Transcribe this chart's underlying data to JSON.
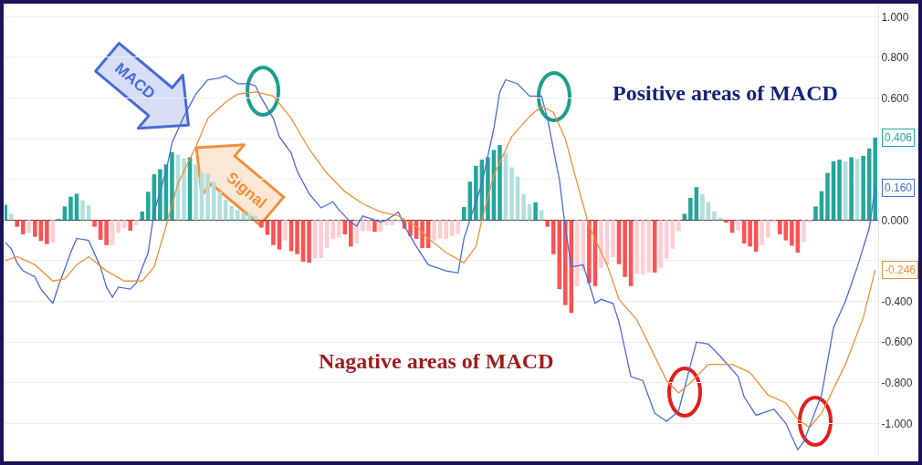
{
  "chart_data": {
    "type": "bar",
    "categories": [
      null,
      null,
      null,
      null,
      null,
      null,
      null,
      null,
      null,
      null,
      null,
      null,
      null,
      null,
      null,
      null,
      null,
      null,
      null,
      null,
      null,
      null,
      null,
      null,
      null,
      null,
      null,
      null,
      null,
      null,
      null,
      null,
      null,
      null,
      null,
      null,
      null,
      null,
      null,
      null,
      null,
      null,
      null,
      null,
      null,
      null,
      null,
      null,
      null,
      null,
      null,
      null,
      null,
      null,
      null,
      null,
      null,
      null,
      null,
      null,
      null,
      null,
      null,
      null,
      null,
      null,
      null,
      null,
      null,
      null,
      null,
      null,
      null,
      null,
      null,
      null,
      null,
      null,
      null,
      null,
      null,
      null,
      null,
      null,
      null,
      null,
      null,
      null,
      null,
      null,
      null,
      null,
      null,
      null,
      null,
      null,
      null,
      null,
      null,
      null,
      null,
      null,
      null,
      null,
      null,
      null,
      null,
      null,
      null,
      null,
      null,
      null,
      null,
      null,
      null,
      null,
      null,
      null,
      null,
      null,
      null,
      null,
      null,
      null,
      null,
      null,
      null,
      null,
      null,
      null,
      null,
      null,
      null,
      null,
      null,
      null,
      null,
      null,
      null,
      null,
      null,
      null,
      null,
      null,
      null,
      null,
      null
    ],
    "series": [
      {
        "values": [
          0.075,
          0.031,
          -0.033,
          -0.07,
          -0.063,
          -0.082,
          -0.103,
          -0.118,
          -0.112,
          0.005,
          0.067,
          0.115,
          0.129,
          0.097,
          0.072,
          -0.033,
          -0.097,
          -0.123,
          -0.123,
          -0.063,
          -0.04,
          -0.052,
          -0.025,
          0.042,
          0.139,
          0.225,
          0.25,
          0.274,
          0.334,
          0.322,
          0.304,
          0.309,
          0.274,
          0.235,
          0.229,
          0.19,
          0.14,
          0.1,
          0.07,
          0.05,
          0.037,
          0.034,
          0.022,
          -0.037,
          -0.073,
          -0.123,
          -0.145,
          -0.1,
          -0.153,
          -0.168,
          -0.205,
          -0.21,
          -0.19,
          -0.187,
          -0.138,
          -0.093,
          -0.085,
          -0.07,
          -0.13,
          -0.115,
          -0.055,
          -0.055,
          -0.058,
          -0.058,
          -0.025,
          -0.025,
          -0.008,
          -0.043,
          -0.078,
          -0.093,
          -0.138,
          -0.138,
          -0.1,
          -0.09,
          -0.093,
          -0.078,
          -0.07,
          0.064,
          0.189,
          0.267,
          0.297,
          0.309,
          0.345,
          0.369,
          0.331,
          0.259,
          0.214,
          0.127,
          0.079,
          0.087,
          0.049,
          -0.033,
          -0.168,
          -0.34,
          -0.418,
          -0.457,
          -0.325,
          -0.25,
          -0.31,
          -0.325,
          -0.235,
          -0.22,
          -0.183,
          -0.217,
          -0.28,
          -0.325,
          -0.265,
          -0.268,
          -0.258,
          -0.258,
          -0.235,
          -0.19,
          -0.141,
          -0.055,
          0.031,
          0.109,
          0.162,
          0.127,
          0.087,
          0.042,
          0.012,
          -0.013,
          -0.063,
          -0.051,
          -0.115,
          -0.13,
          -0.156,
          -0.123,
          -0.085,
          -0.01,
          -0.07,
          -0.1,
          -0.126,
          -0.16,
          -0.108,
          -0.013,
          0.067,
          0.142,
          0.232,
          0.289,
          0.297,
          0.289,
          0.309,
          0.301,
          0.316,
          0.352,
          0.406
        ],
        "colors": [
          "#26a69a",
          "#b2dfdb",
          "#ff5252",
          "#ff5252",
          "#ffcdd2",
          "#ff5252",
          "#ff5252",
          "#ff5252",
          "#ffcdd2",
          "#26a69a",
          "#26a69a",
          "#26a69a",
          "#26a69a",
          "#b2dfdb",
          "#b2dfdb",
          "#ff5252",
          "#ff5252",
          "#ff5252",
          "#ffcdd2",
          "#ffcdd2",
          "#ffcdd2",
          "#ff5252",
          "#ffcdd2",
          "#26a69a",
          "#26a69a",
          "#26a69a",
          "#26a69a",
          "#26a69a",
          "#26a69a",
          "#b2dfdb",
          "#b2dfdb",
          "#26a69a",
          "#b2dfdb",
          "#b2dfdb",
          "#b2dfdb",
          "#b2dfdb",
          "#b2dfdb",
          "#b2dfdb",
          "#b2dfdb",
          "#b2dfdb",
          "#b2dfdb",
          "#b2dfdb",
          "#b2dfdb",
          "#ff5252",
          "#ff5252",
          "#ff5252",
          "#ff5252",
          "#ffcdd2",
          "#ff5252",
          "#ff5252",
          "#ff5252",
          "#ff5252",
          "#ffcdd2",
          "#ffcdd2",
          "#ffcdd2",
          "#ffcdd2",
          "#ffcdd2",
          "#ff5252",
          "#ff5252",
          "#ffcdd2",
          "#ffcdd2",
          "#ffcdd2",
          "#ff5252",
          "#ffcdd2",
          "#ffcdd2",
          "#ffcdd2",
          "#ffcdd2",
          "#ff5252",
          "#ff5252",
          "#ff5252",
          "#ff5252",
          "#ff5252",
          "#ffcdd2",
          "#ffcdd2",
          "#ffcdd2",
          "#ffcdd2",
          "#ffcdd2",
          "#26a69a",
          "#26a69a",
          "#26a69a",
          "#26a69a",
          "#26a69a",
          "#26a69a",
          "#26a69a",
          "#b2dfdb",
          "#b2dfdb",
          "#b2dfdb",
          "#b2dfdb",
          "#b2dfdb",
          "#26a69a",
          "#b2dfdb",
          "#ff5252",
          "#ff5252",
          "#ff5252",
          "#ff5252",
          "#ff5252",
          "#ffcdd2",
          "#ffcdd2",
          "#ff5252",
          "#ff5252",
          "#ffcdd2",
          "#ffcdd2",
          "#ffcdd2",
          "#ff5252",
          "#ff5252",
          "#ff5252",
          "#ffcdd2",
          "#ffcdd2",
          "#ffcdd2",
          "#ff5252",
          "#ffcdd2",
          "#ffcdd2",
          "#ffcdd2",
          "#ffcdd2",
          "#26a69a",
          "#26a69a",
          "#26a69a",
          "#b2dfdb",
          "#b2dfdb",
          "#b2dfdb",
          "#b2dfdb",
          "#ff5252",
          "#ff5252",
          "#ffcdd2",
          "#ff5252",
          "#ff5252",
          "#ff5252",
          "#ffcdd2",
          "#ffcdd2",
          "#ffcdd2",
          "#ff5252",
          "#ff5252",
          "#ff5252",
          "#ff5252",
          "#ffcdd2",
          "#ffcdd2",
          "#26a69a",
          "#26a69a",
          "#26a69a",
          "#26a69a",
          "#26a69a",
          "#b2dfdb",
          "#26a69a",
          "#b2dfdb",
          "#26a69a",
          "#26a69a",
          "#26a69a"
        ]
      },
      {
        "type": "line",
        "name": "MACD",
        "color": "#4a6bd6",
        "values": [
          -0.11,
          -0.14,
          -0.21,
          -0.25,
          null,
          -0.28,
          -0.34,
          null,
          -0.41,
          -0.32,
          null,
          -0.16,
          -0.09,
          null,
          -0.1,
          null,
          -0.23,
          -0.33,
          -0.38,
          -0.33,
          null,
          -0.34,
          -0.31,
          null,
          -0.16,
          0.04,
          null,
          0.24,
          0.38,
          null,
          0.51,
          null,
          0.62,
          null,
          0.69,
          null,
          0.7,
          0.71,
          null,
          0.67,
          null,
          0.67,
          0.66,
          0.6,
          null,
          0.5,
          0.41,
          null,
          0.33,
          0.24,
          null,
          0.13,
          null,
          0.06,
          null,
          0.09,
          0.05,
          null,
          -0.01,
          -0.03,
          0.02,
          null,
          null,
          -0.01,
          0,
          null,
          0.04,
          -0.03,
          null,
          -0.13,
          null,
          -0.22,
          null,
          -0.24,
          -0.25,
          null,
          -0.26,
          -0.09,
          null,
          null,
          0.18,
          null,
          0.45,
          0.63,
          0.69,
          null,
          0.67,
          null,
          0.61,
          null,
          0.61,
          0.5,
          null,
          0.2,
          -0.04,
          -0.23,
          null,
          -0.22,
          null,
          -0.41,
          -0.39,
          null,
          -0.41,
          -0.5,
          null,
          -0.77,
          null,
          -0.79,
          null,
          -0.95,
          null,
          -0.99,
          null,
          -0.94,
          null,
          null,
          -0.6,
          null,
          -0.61,
          null,
          -0.67,
          null,
          null,
          -0.77,
          -0.87,
          null,
          -0.96,
          null,
          null,
          -0.93,
          null,
          -1,
          null,
          -1.13,
          -1.09,
          null,
          null,
          -0.86,
          null,
          -0.53,
          null,
          -0.4,
          null,
          -0.23,
          null,
          -0.04,
          0.16
        ]
      },
      {
        "type": "line",
        "name": "Signal",
        "color": "#f0903a",
        "values": [
          -0.2,
          null,
          -0.18,
          null,
          null,
          -0.22,
          null,
          null,
          -0.3,
          null,
          -0.29,
          null,
          -0.22,
          null,
          -0.18,
          null,
          null,
          -0.25,
          null,
          null,
          -0.3,
          null,
          null,
          -0.3,
          null,
          -0.23,
          null,
          -0.03,
          null,
          0.18,
          null,
          null,
          0.36,
          null,
          0.5,
          null,
          null,
          0.58,
          null,
          0.62,
          null,
          null,
          0.63,
          null,
          null,
          0.61,
          null,
          null,
          0.5,
          null,
          null,
          0.35,
          null,
          null,
          0.23,
          null,
          null,
          0.14,
          null,
          null,
          0.08,
          null,
          null,
          0.04,
          null,
          null,
          0.02,
          null,
          null,
          -0.03,
          null,
          -0.09,
          null,
          null,
          -0.16,
          null,
          null,
          -0.21,
          null,
          -0.13,
          0,
          null,
          0.22,
          null,
          null,
          0.41,
          null,
          null,
          0.51,
          null,
          0.56,
          null,
          0.53,
          null,
          0.4,
          null,
          0.18,
          null,
          -0.03,
          null,
          null,
          -0.22,
          null,
          -0.39,
          null,
          null,
          -0.49,
          null,
          -0.61,
          null,
          null,
          -0.79,
          null,
          -0.85,
          null,
          -0.8,
          null,
          null,
          -0.71,
          null,
          null,
          null,
          -0.71,
          null,
          null,
          -0.75,
          null,
          null,
          -0.86,
          null,
          null,
          -0.9,
          null,
          -0.98,
          null,
          -1.02,
          null,
          -0.95,
          null,
          null,
          null,
          -0.71,
          null,
          null,
          -0.48,
          null,
          -0.246
        ]
      }
    ],
    "ylim": [
      -1.16,
      1.06
    ],
    "yticks": [
      {
        "value": -1,
        "label": "-1.000"
      },
      {
        "value": -0.8,
        "label": "-0.800"
      },
      {
        "value": -0.6,
        "label": "-0.600"
      },
      {
        "value": -0.4,
        "label": "-0.400"
      },
      {
        "value": -0.2,
        "label": null
      },
      {
        "value": 0,
        "label": "0.000"
      },
      {
        "value": 0.2,
        "label": null
      },
      {
        "value": 0.4,
        "label": null
      },
      {
        "value": 0.6,
        "label": "0.600"
      },
      {
        "value": 0.8,
        "label": "0.800"
      },
      {
        "value": 1,
        "label": "1.000"
      }
    ],
    "grid": "y",
    "tick_labels": "y",
    "annotations": [
      "Positive areas of MACD",
      "Nagative areas of MACD",
      "0.406",
      "0.160",
      "-0.246"
    ]
  }
}
